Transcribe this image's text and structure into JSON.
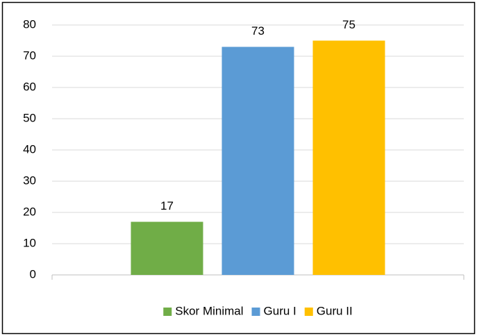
{
  "chart_data": {
    "type": "bar",
    "categories": [
      null
    ],
    "series": [
      {
        "name": "Skor Minimal",
        "color": "#70ad47",
        "values": [
          17
        ]
      },
      {
        "name": "Guru I",
        "color": "#5b9bd5",
        "values": [
          73
        ]
      },
      {
        "name": "Guru II",
        "color": "#ffc000",
        "values": [
          75
        ]
      }
    ],
    "ylim": [
      0,
      80
    ],
    "yticks": [
      0,
      10,
      20,
      30,
      40,
      50,
      60,
      70,
      80
    ],
    "grid": true,
    "legend": "bottom"
  }
}
